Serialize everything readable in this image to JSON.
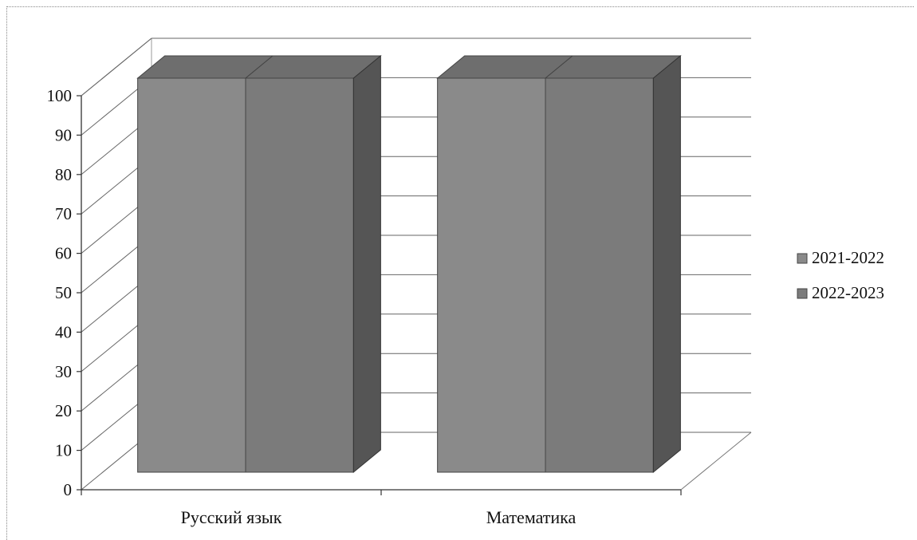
{
  "chart_data": {
    "type": "bar",
    "title": "",
    "xlabel": "",
    "ylabel": "",
    "categories": [
      "Русский язык",
      "Математика"
    ],
    "series": [
      {
        "name": "2021-2022",
        "values": [
          100,
          100
        ],
        "color": "#8a8a8a"
      },
      {
        "name": "2022-2023",
        "values": [
          100,
          100
        ],
        "color": "#7b7b7b"
      }
    ],
    "ylim": [
      0,
      100
    ],
    "yticks": [
      "0",
      "10",
      "20",
      "30",
      "40",
      "50",
      "60",
      "70",
      "80",
      "90",
      "100"
    ],
    "grid": true,
    "legend_position": "right",
    "three_d": true
  }
}
